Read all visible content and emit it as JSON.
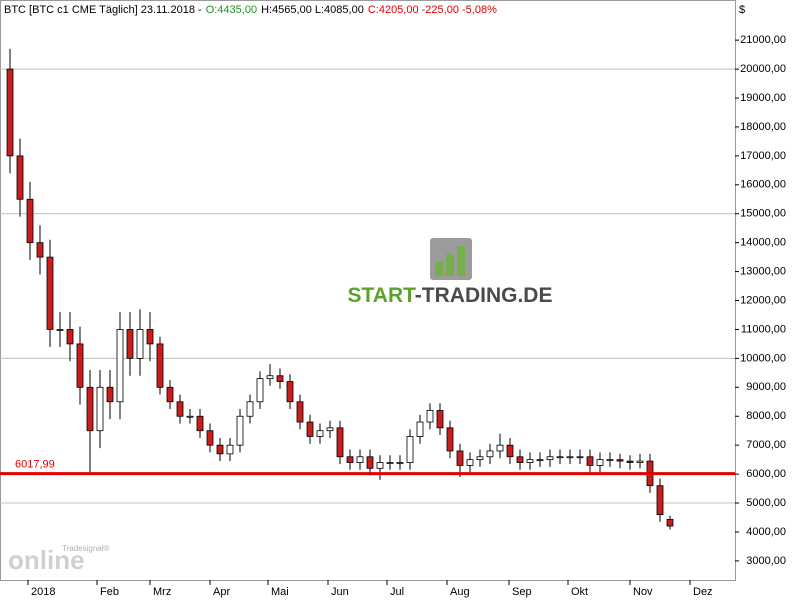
{
  "chart_data": {
    "type": "candlestick",
    "header": [
      {
        "text": "BTC [BTC c1 CME  Täglich] 23.11.2018 -",
        "color": "#000000"
      },
      {
        "text": "O:4435,00",
        "color": "#1a9a1a"
      },
      {
        "text": "H:4565,00 L:4085,00",
        "color": "#000000"
      },
      {
        "text": "C:4205,00 -225,00 -5,08%",
        "color": "#e00000"
      }
    ],
    "y_axis_label": "$",
    "watermark": [
      "START",
      "-TRADING.DE"
    ],
    "logo": "online",
    "logo_sub": "Tradesignal®",
    "x": [
      1,
      2,
      3,
      4,
      5,
      6,
      7,
      8,
      9,
      10,
      11,
      12,
      13,
      14,
      15,
      16,
      17,
      18,
      19,
      20,
      21,
      22,
      23,
      24,
      25,
      26,
      27,
      28,
      29,
      30,
      31,
      32,
      33,
      34,
      35,
      36,
      37,
      38,
      39,
      40,
      41,
      42,
      43,
      44,
      45,
      46,
      47,
      48,
      49,
      50,
      51,
      52,
      53,
      54,
      55,
      56,
      57,
      58,
      59,
      60,
      61,
      62,
      63,
      64,
      65,
      66,
      67
    ],
    "open": [
      20000,
      17000,
      15500,
      14000,
      13500,
      11000,
      11000,
      10500,
      9000,
      7500,
      9000,
      8500,
      11000,
      10000,
      11000,
      10500,
      9000,
      8500,
      8000,
      8000,
      7500,
      7000,
      6700,
      7000,
      8000,
      8500,
      9300,
      9400,
      9200,
      8500,
      7800,
      7300,
      7500,
      7600,
      6600,
      6400,
      6600,
      6200,
      6400,
      6400,
      6400,
      7300,
      7800,
      8200,
      7600,
      6800,
      6300,
      6500,
      6600,
      6800,
      7000,
      6600,
      6400,
      6500,
      6500,
      6600,
      6600,
      6600,
      6600,
      6300,
      6500,
      6500,
      6450,
      6400,
      6450,
      5600,
      4435
    ],
    "high": [
      20700,
      17600,
      16100,
      14600,
      14100,
      11600,
      11600,
      11100,
      9600,
      9600,
      9600,
      11600,
      11600,
      11700,
      11600,
      10750,
      9250,
      8750,
      8250,
      8250,
      7750,
      7250,
      7250,
      8250,
      8750,
      9550,
      9800,
      9650,
      9450,
      8750,
      8050,
      7750,
      7850,
      7850,
      6850,
      6850,
      6850,
      6650,
      6650,
      6650,
      7550,
      8050,
      8450,
      8450,
      7850,
      7050,
      6750,
      6850,
      7050,
      7400,
      7250,
      6850,
      6750,
      6750,
      6850,
      6850,
      6850,
      6850,
      6850,
      6750,
      6750,
      6700,
      6650,
      6700,
      6700,
      5850,
      4565
    ],
    "low": [
      16400,
      14900,
      13400,
      12900,
      10400,
      10400,
      9900,
      8400,
      6000,
      6900,
      7900,
      7900,
      9400,
      9400,
      9900,
      8750,
      8250,
      7750,
      7750,
      7250,
      6750,
      6450,
      6450,
      6750,
      7750,
      8250,
      9050,
      8950,
      8250,
      7550,
      7050,
      7050,
      7250,
      6350,
      6150,
      6150,
      5950,
      5800,
      6150,
      6150,
      6150,
      7050,
      7550,
      7350,
      6550,
      5900,
      6050,
      6250,
      6350,
      6550,
      6350,
      6150,
      6150,
      6250,
      6250,
      6350,
      6350,
      6350,
      6050,
      6050,
      6250,
      6200,
      6150,
      6200,
      5350,
      4350,
      4085
    ],
    "close": [
      17000,
      15500,
      14000,
      13500,
      11000,
      11000,
      10500,
      9000,
      7500,
      9000,
      8500,
      11000,
      10000,
      11000,
      10500,
      9000,
      8500,
      8000,
      8000,
      7500,
      7000,
      6700,
      7000,
      8000,
      8500,
      9300,
      9400,
      9200,
      8500,
      7800,
      7300,
      7500,
      7600,
      6600,
      6400,
      6600,
      6200,
      6400,
      6400,
      6400,
      7300,
      7800,
      8200,
      7600,
      6800,
      6300,
      6500,
      6600,
      6800,
      7000,
      6600,
      6400,
      6500,
      6500,
      6600,
      6600,
      6600,
      6600,
      6300,
      6500,
      6500,
      6450,
      6400,
      6450,
      5600,
      4600,
      4205
    ],
    "up_color": "#ffffff",
    "down_color": "#c81e1e",
    "xlim": [
      0,
      73.5
    ],
    "xticks": [
      {
        "value": 2.8,
        "label": "2018"
      },
      {
        "value": 9.7,
        "label": "Feb"
      },
      {
        "value": 15,
        "label": "Mrz"
      },
      {
        "value": 21,
        "label": "Apr"
      },
      {
        "value": 26.8,
        "label": "Mai"
      },
      {
        "value": 32.8,
        "label": "Jun"
      },
      {
        "value": 38.7,
        "label": "Jul"
      },
      {
        "value": 44.7,
        "label": "Aug"
      },
      {
        "value": 50.9,
        "label": "Sep"
      },
      {
        "value": 56.8,
        "label": "Okt"
      },
      {
        "value": 63,
        "label": "Nov"
      },
      {
        "value": 69,
        "label": "Dez"
      }
    ],
    "ylim": [
      2340,
      21800
    ],
    "yticks": [
      {
        "value": 3000,
        "label": "3000,00"
      },
      {
        "value": 4000,
        "label": "4000,00"
      },
      {
        "value": 5000,
        "label": "5000,00"
      },
      {
        "value": 6000,
        "label": "6000,00"
      },
      {
        "value": 7000,
        "label": "7000,00"
      },
      {
        "value": 8000,
        "label": "8000,00"
      },
      {
        "value": 9000,
        "label": "9000,00"
      },
      {
        "value": 10000,
        "label": "10000,00"
      },
      {
        "value": 11000,
        "label": "11000,00"
      },
      {
        "value": 12000,
        "label": "12000,00"
      },
      {
        "value": 13000,
        "label": "13000,00"
      },
      {
        "value": 14000,
        "label": "14000,00"
      },
      {
        "value": 15000,
        "label": "15000,00"
      },
      {
        "value": 16000,
        "label": "16000,00"
      },
      {
        "value": 17000,
        "label": "17000,00"
      },
      {
        "value": 18000,
        "label": "18000,00"
      },
      {
        "value": 19000,
        "label": "19000,00"
      },
      {
        "value": 20000,
        "label": "20000,00"
      },
      {
        "value": 21000,
        "label": "21000,00"
      }
    ],
    "gridlines": [
      5000,
      10000,
      15000,
      20000
    ],
    "level": {
      "value": 6017.99,
      "label": "6017,99",
      "color": "#e00000"
    }
  }
}
